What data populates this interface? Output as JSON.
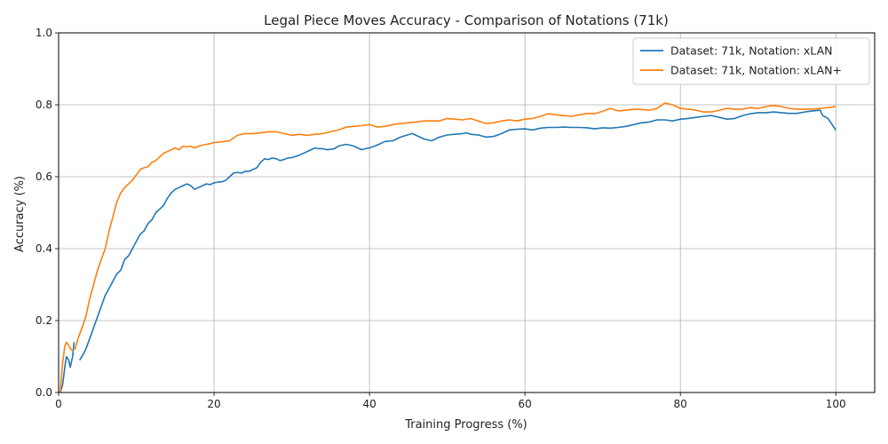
{
  "chart_data": {
    "type": "line",
    "title": "Legal Piece Moves Accuracy - Comparison of Notations (71k)",
    "xlabel": "Training Progress (%)",
    "ylabel": "Accuracy (%)",
    "xlim": [
      0,
      105
    ],
    "ylim": [
      0,
      1.0
    ],
    "xticks": [
      0,
      20,
      40,
      60,
      80,
      100
    ],
    "yticks": [
      0.0,
      0.2,
      0.4,
      0.6,
      0.8,
      1.0
    ],
    "xtick_labels": [
      "0",
      "20",
      "40",
      "60",
      "80",
      "100"
    ],
    "ytick_labels": [
      "0.0",
      "0.2",
      "0.4",
      "0.6",
      "0.8",
      "1.0"
    ],
    "grid": true,
    "legend_position": "top-right",
    "series": [
      {
        "name": "Dataset: 71k, Notation: xLAN",
        "color": "#1f77b4",
        "segments": [
          {
            "x": [
              0.2,
              0.5,
              0.8,
              1.0,
              1.3,
              1.5,
              1.8,
              2.0
            ],
            "y": [
              0.0,
              0.02,
              0.07,
              0.1,
              0.09,
              0.07,
              0.1,
              0.14
            ]
          },
          {
            "x": [
              2.7,
              3.0,
              3.5,
              4.0,
              4.5,
              5.0,
              5.5,
              6.0,
              6.5,
              7.0,
              7.5,
              8.0,
              8.5,
              9.0,
              9.5,
              10.0,
              10.5,
              11.0,
              11.5,
              12.0,
              12.5,
              13.0,
              13.5,
              14.0,
              14.5,
              15.0,
              15.5,
              16.0,
              16.5,
              17.0,
              17.5,
              18.0,
              18.5,
              19.0,
              19.5,
              20.0,
              20.5,
              21.0,
              21.5,
              22.0,
              22.5,
              23.0,
              23.5,
              24.0,
              24.5,
              25.0,
              25.5,
              26.0,
              26.5,
              27.0,
              27.5,
              28.0,
              28.5,
              29.0,
              29.5,
              30.0,
              31.0,
              32.0,
              33.0,
              33.5,
              34.0,
              34.5,
              35.0,
              35.5,
              36.0,
              36.5,
              37.0,
              37.5,
              38.0,
              38.5,
              39.0,
              39.5,
              40.0,
              41.0,
              42.0,
              43.0,
              44.0,
              45.0,
              45.5,
              46.0,
              47.0,
              48.0,
              49.0,
              50.0,
              51.0,
              52.0,
              52.5,
              53.0,
              54.0,
              55.0,
              56.0,
              57.0,
              58.0,
              59.0,
              60.0,
              61.0,
              62.0,
              63.0,
              64.0,
              65.0,
              66.0,
              67.0,
              68.0,
              69.0,
              70.0,
              71.0,
              72.0,
              73.0,
              74.0,
              75.0,
              76.0,
              77.0,
              78.0,
              79.0,
              80.0,
              81.0,
              82.0,
              83.0,
              84.0,
              85.0,
              86.0,
              87.0,
              88.0,
              89.0,
              90.0,
              91.0,
              92.0,
              93.0,
              94.0,
              95.0,
              96.0,
              97.0,
              98.0,
              98.3,
              99.0,
              100.0
            ],
            "y": [
              0.09,
              0.1,
              0.12,
              0.15,
              0.18,
              0.21,
              0.24,
              0.27,
              0.29,
              0.31,
              0.33,
              0.34,
              0.37,
              0.38,
              0.4,
              0.42,
              0.44,
              0.45,
              0.47,
              0.48,
              0.5,
              0.51,
              0.52,
              0.54,
              0.555,
              0.565,
              0.57,
              0.575,
              0.58,
              0.575,
              0.565,
              0.57,
              0.575,
              0.58,
              0.578,
              0.583,
              0.585,
              0.586,
              0.59,
              0.6,
              0.61,
              0.612,
              0.61,
              0.615,
              0.615,
              0.62,
              0.625,
              0.64,
              0.65,
              0.648,
              0.652,
              0.65,
              0.645,
              0.648,
              0.652,
              0.653,
              0.66,
              0.67,
              0.68,
              0.678,
              0.678,
              0.675,
              0.676,
              0.678,
              0.685,
              0.688,
              0.69,
              0.688,
              0.685,
              0.68,
              0.675,
              0.678,
              0.68,
              0.688,
              0.698,
              0.7,
              0.71,
              0.717,
              0.72,
              0.715,
              0.705,
              0.7,
              0.71,
              0.716,
              0.718,
              0.72,
              0.722,
              0.718,
              0.716,
              0.71,
              0.712,
              0.72,
              0.73,
              0.732,
              0.733,
              0.73,
              0.735,
              0.737,
              0.737,
              0.738,
              0.737,
              0.737,
              0.736,
              0.733,
              0.736,
              0.735,
              0.737,
              0.74,
              0.745,
              0.75,
              0.752,
              0.758,
              0.758,
              0.755,
              0.76,
              0.762,
              0.765,
              0.768,
              0.77,
              0.765,
              0.76,
              0.762,
              0.77,
              0.775,
              0.778,
              0.778,
              0.78,
              0.778,
              0.776,
              0.776,
              0.78,
              0.783,
              0.785,
              0.77,
              0.762,
              0.73
            ]
          }
        ]
      },
      {
        "name": "Dataset: 71k, Notation: xLAN+",
        "color": "#ff7f0e",
        "segments": [
          {
            "x": [
              0.2,
              0.5,
              0.8,
              1.0,
              1.3,
              1.6,
              1.9
            ],
            "y": [
              0.0,
              0.08,
              0.13,
              0.14,
              0.13,
              0.12,
              0.115
            ]
          },
          {
            "x": [
              2.1,
              2.5,
              3.0,
              3.5,
              4.0,
              4.5,
              5.0,
              5.5,
              6.0,
              6.5,
              7.0,
              7.5,
              8.0,
              8.5,
              9.0,
              9.5,
              10.0,
              10.5,
              11.0,
              11.5,
              12.0,
              12.5,
              13.0,
              13.5,
              14.0,
              14.5,
              15.0,
              15.5,
              16.0,
              16.5,
              17.0,
              17.5,
              18.0,
              18.5,
              19.0,
              19.5,
              20.0,
              21.0,
              22.0,
              23.0,
              24.0,
              25.0,
              26.0,
              27.0,
              28.0,
              29.0,
              30.0,
              31.0,
              32.0,
              33.0,
              34.0,
              35.0,
              36.0,
              37.0,
              38.0,
              39.0,
              40.0,
              41.0,
              42.0,
              43.0,
              44.0,
              45.0,
              46.0,
              47.0,
              48.0,
              49.0,
              50.0,
              51.0,
              52.0,
              53.0,
              54.0,
              55.0,
              56.0,
              57.0,
              58.0,
              59.0,
              60.0,
              61.0,
              62.0,
              63.0,
              64.0,
              65.0,
              66.0,
              67.0,
              68.0,
              69.0,
              70.0,
              71.0,
              72.0,
              73.0,
              74.0,
              75.0,
              76.0,
              77.0,
              78.0,
              79.0,
              80.0,
              81.0,
              82.0,
              83.0,
              84.0,
              85.0,
              86.0,
              87.0,
              88.0,
              89.0,
              90.0,
              91.0,
              92.0,
              93.0,
              94.0,
              95.0,
              96.0,
              97.0,
              98.0,
              99.0,
              100.0
            ],
            "y": [
              0.12,
              0.15,
              0.18,
              0.21,
              0.26,
              0.3,
              0.34,
              0.37,
              0.4,
              0.45,
              0.49,
              0.53,
              0.555,
              0.57,
              0.58,
              0.59,
              0.605,
              0.62,
              0.625,
              0.628,
              0.64,
              0.645,
              0.655,
              0.665,
              0.67,
              0.675,
              0.68,
              0.675,
              0.685,
              0.683,
              0.685,
              0.68,
              0.685,
              0.688,
              0.69,
              0.692,
              0.695,
              0.697,
              0.7,
              0.715,
              0.72,
              0.72,
              0.722,
              0.725,
              0.725,
              0.72,
              0.715,
              0.718,
              0.715,
              0.718,
              0.72,
              0.725,
              0.73,
              0.738,
              0.74,
              0.742,
              0.745,
              0.738,
              0.74,
              0.745,
              0.748,
              0.75,
              0.752,
              0.755,
              0.755,
              0.755,
              0.762,
              0.76,
              0.758,
              0.762,
              0.755,
              0.748,
              0.75,
              0.755,
              0.758,
              0.755,
              0.76,
              0.762,
              0.768,
              0.775,
              0.772,
              0.77,
              0.768,
              0.772,
              0.776,
              0.775,
              0.782,
              0.79,
              0.783,
              0.785,
              0.788,
              0.787,
              0.785,
              0.79,
              0.805,
              0.8,
              0.79,
              0.788,
              0.785,
              0.78,
              0.78,
              0.785,
              0.79,
              0.788,
              0.788,
              0.792,
              0.79,
              0.795,
              0.798,
              0.795,
              0.79,
              0.788,
              0.788,
              0.788,
              0.79,
              0.792,
              0.795
            ]
          }
        ]
      }
    ]
  }
}
